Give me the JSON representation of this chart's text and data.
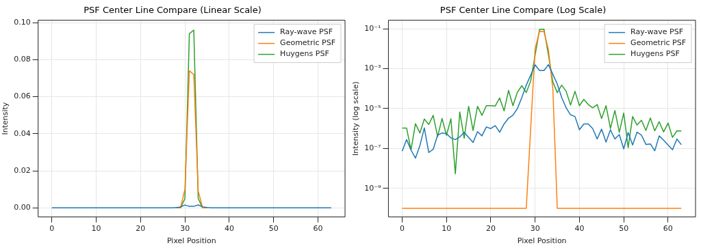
{
  "chart_data": [
    {
      "type": "line",
      "title": "PSF Center Line Compare (Linear Scale)",
      "xlabel": "Pixel Position",
      "ylabel": "Intensity",
      "xlim": [
        -3.1,
        66.1
      ],
      "xticks": [
        0,
        10,
        20,
        30,
        40,
        50,
        60
      ],
      "ylim": [
        -0.0049,
        0.1013
      ],
      "yticks": [
        {
          "value": 0,
          "label": "0.00"
        },
        {
          "value": 0.02,
          "label": "0.02"
        },
        {
          "value": 0.04,
          "label": "0.04"
        },
        {
          "value": 0.06,
          "label": "0.06"
        },
        {
          "value": 0.08,
          "label": "0.08"
        },
        {
          "value": 0.1,
          "label": "0.10"
        }
      ],
      "grid": true,
      "legend": "top right",
      "x": [
        0,
        1,
        2,
        3,
        4,
        5,
        6,
        7,
        8,
        9,
        10,
        11,
        12,
        13,
        14,
        15,
        16,
        17,
        18,
        19,
        20,
        21,
        22,
        23,
        24,
        25,
        26,
        27,
        28,
        29,
        30,
        31,
        32,
        33,
        34,
        35,
        36,
        37,
        38,
        39,
        40,
        41,
        42,
        43,
        44,
        45,
        46,
        47,
        48,
        49,
        50,
        51,
        52,
        53,
        54,
        55,
        56,
        57,
        58,
        59,
        60,
        61,
        62,
        63
      ],
      "series": [
        {
          "name": "Ray-wave PSF",
          "color": "#1f77b4",
          "values": [
            7.4e-08,
            2.8e-07,
            8.3e-08,
            3.3e-08,
            1.4e-07,
            1.07e-06,
            6.3e-08,
            9e-08,
            4.7e-07,
            6e-07,
            5.5e-07,
            3.4e-07,
            2.8e-07,
            3.8e-07,
            6.5e-07,
            3.6e-07,
            2e-07,
            7e-07,
            4.3e-07,
            1.2e-06,
            1e-06,
            1.4e-06,
            6.5e-07,
            1.7e-06,
            3.3e-06,
            4.7e-06,
            1e-05,
            3.6e-05,
            0.00015,
            0.00047,
            0.00155,
            0.00081,
            0.00081,
            0.0016,
            0.00053,
            0.00017,
            3.6e-05,
            1.1e-05,
            4.9e-06,
            4e-06,
            8.7e-07,
            1.7e-06,
            1.7e-06,
            1e-06,
            3e-07,
            9.3e-07,
            2.1e-07,
            8.7e-07,
            3e-07,
            5e-07,
            9.5e-08,
            6.3e-07,
            1.5e-07,
            6.6e-07,
            4.7e-07,
            1.6e-07,
            1.7e-07,
            7.7e-08,
            4.3e-07,
            2.6e-07,
            1.5e-07,
            8.6e-08,
            3e-07,
            1.55e-07
          ]
        },
        {
          "name": "Geometric PSF",
          "color": "#ff7f0e",
          "values": [
            null,
            null,
            null,
            null,
            null,
            null,
            null,
            null,
            null,
            null,
            null,
            null,
            null,
            null,
            null,
            null,
            null,
            null,
            null,
            null,
            null,
            null,
            null,
            null,
            null,
            null,
            null,
            null,
            0,
            0,
            0.01,
            0.074,
            0.072,
            0.009,
            0,
            0,
            null,
            null,
            null,
            null,
            null,
            null,
            null,
            null,
            null,
            null,
            null,
            null,
            null,
            null,
            null,
            null,
            null,
            null,
            null,
            null,
            null,
            null,
            null,
            null,
            null,
            null,
            null,
            null
          ]
        },
        {
          "name": "Huygens PSF",
          "color": "#2ca02c",
          "values": [
            null,
            null,
            null,
            null,
            null,
            null,
            null,
            null,
            null,
            null,
            null,
            null,
            null,
            null,
            null,
            null,
            null,
            null,
            null,
            null,
            null,
            null,
            null,
            null,
            null,
            null,
            null,
            null,
            0,
            0,
            0.005,
            0.094,
            0.096,
            0.005,
            0,
            0,
            null,
            null,
            null,
            null,
            null,
            null,
            null,
            null,
            null,
            null,
            null,
            null,
            null,
            null,
            null,
            null,
            null,
            null,
            null,
            null,
            null,
            null,
            null,
            null,
            null,
            null,
            null,
            null
          ]
        }
      ]
    },
    {
      "type": "line",
      "title": "PSF Center Line Compare (Log Scale)",
      "xlabel": "Pixel Position",
      "ylabel": "Intensity (log scale)",
      "log": "y",
      "xlim": [
        -3.1,
        66.2
      ],
      "xticks": [
        0,
        10,
        20,
        30,
        40,
        50,
        60
      ],
      "ylim": [
        3.7e-11,
        0.27
      ],
      "yticks": [
        {
          "value": 1e-09,
          "label": "10⁻⁹"
        },
        {
          "value": 1e-07,
          "label": "10⁻⁷"
        },
        {
          "value": 1e-05,
          "label": "10⁻⁵"
        },
        {
          "value": 0.001,
          "label": "10⁻³"
        },
        {
          "value": 0.1,
          "label": "10⁻¹"
        }
      ],
      "grid": true,
      "legend": "top right",
      "x": [
        0,
        1,
        2,
        3,
        4,
        5,
        6,
        7,
        8,
        9,
        10,
        11,
        12,
        13,
        14,
        15,
        16,
        17,
        18,
        19,
        20,
        21,
        22,
        23,
        24,
        25,
        26,
        27,
        28,
        29,
        30,
        31,
        32,
        33,
        34,
        35,
        36,
        37,
        38,
        39,
        40,
        41,
        42,
        43,
        44,
        45,
        46,
        47,
        48,
        49,
        50,
        51,
        52,
        53,
        54,
        55,
        56,
        57,
        58,
        59,
        60,
        61,
        62,
        63
      ],
      "series": [
        {
          "name": "Ray-wave PSF",
          "color": "#1f77b4",
          "values": [
            7.4e-08,
            2.8e-07,
            8.3e-08,
            3.3e-08,
            1.4e-07,
            1.07e-06,
            6.3e-08,
            9e-08,
            4.7e-07,
            6e-07,
            5.5e-07,
            3.4e-07,
            2.8e-07,
            3.8e-07,
            6.5e-07,
            3.6e-07,
            2e-07,
            7e-07,
            4.3e-07,
            1.2e-06,
            1e-06,
            1.4e-06,
            6.5e-07,
            1.7e-06,
            3.3e-06,
            4.7e-06,
            1e-05,
            3.6e-05,
            0.00015,
            0.00047,
            0.00155,
            0.00081,
            0.00081,
            0.0016,
            0.00053,
            0.00017,
            3.6e-05,
            1.1e-05,
            4.9e-06,
            4e-06,
            8.7e-07,
            1.7e-06,
            1.7e-06,
            1e-06,
            3e-07,
            9.3e-07,
            2.1e-07,
            8.7e-07,
            3e-07,
            5e-07,
            9.5e-08,
            6.3e-07,
            1.5e-07,
            6.6e-07,
            4.7e-07,
            1.6e-07,
            1.7e-07,
            7.7e-08,
            4.3e-07,
            2.6e-07,
            1.5e-07,
            8.6e-08,
            3e-07,
            1.55e-07
          ]
        },
        {
          "name": "Geometric PSF",
          "color": "#ff7f0e",
          "values": [
            1e-10,
            1e-10,
            1e-10,
            1e-10,
            1e-10,
            1e-10,
            1e-10,
            1e-10,
            1e-10,
            1e-10,
            1e-10,
            1e-10,
            1e-10,
            1e-10,
            1e-10,
            1e-10,
            1e-10,
            1e-10,
            1e-10,
            1e-10,
            1e-10,
            1e-10,
            1e-10,
            1e-10,
            1e-10,
            1e-10,
            1e-10,
            1e-10,
            1e-10,
            1e-06,
            0.01,
            0.074,
            0.072,
            0.009,
            0.0001,
            1e-10,
            1e-10,
            1e-10,
            1e-10,
            1e-10,
            1e-10,
            1e-10,
            1e-10,
            1e-10,
            1e-10,
            1e-10,
            1e-10,
            1e-10,
            1e-10,
            1e-10,
            1e-10,
            1e-10,
            1e-10,
            1e-10,
            1e-10,
            1e-10,
            1e-10,
            1e-10,
            1e-10,
            1e-10,
            1e-10,
            1e-10,
            1e-10,
            1e-10
          ]
        },
        {
          "name": "Huygens PSF",
          "color": "#2ca02c",
          "values": [
            1.05e-06,
            1.05e-06,
            8.6e-08,
            1.75e-06,
            6e-07,
            3e-06,
            1.6e-06,
            4.6e-06,
            4e-07,
            3.2e-06,
            4.6e-07,
            3.1e-06,
            5.4e-09,
            6.8e-06,
            3.3e-07,
            1.3e-05,
            8e-07,
            1.3e-05,
            4.6e-06,
            1.4e-05,
            1.4e-05,
            1.35e-05,
            3.4e-05,
            7.7e-06,
            8.2e-05,
            1.4e-05,
            6.6e-05,
            0.00014,
            6.4e-05,
            0.00024,
            0.0047,
            0.094,
            0.096,
            0.005,
            0.00022,
            6.3e-05,
            0.00015,
            7.4e-05,
            1.5e-05,
            7.4e-05,
            1.4e-05,
            2.9e-05,
            1.6e-05,
            1.1e-05,
            1.6e-05,
            3.2e-06,
            1.4e-05,
            1e-06,
            8.1e-06,
            6.5e-07,
            6e-06,
            1.1e-07,
            4e-06,
            1.5e-06,
            2.6e-06,
            8e-07,
            3.4e-06,
            7.7e-07,
            2.2e-06,
            6.8e-07,
            1.9e-06,
            3.6e-07,
            7.7e-07,
            7.6e-07
          ]
        }
      ]
    }
  ]
}
